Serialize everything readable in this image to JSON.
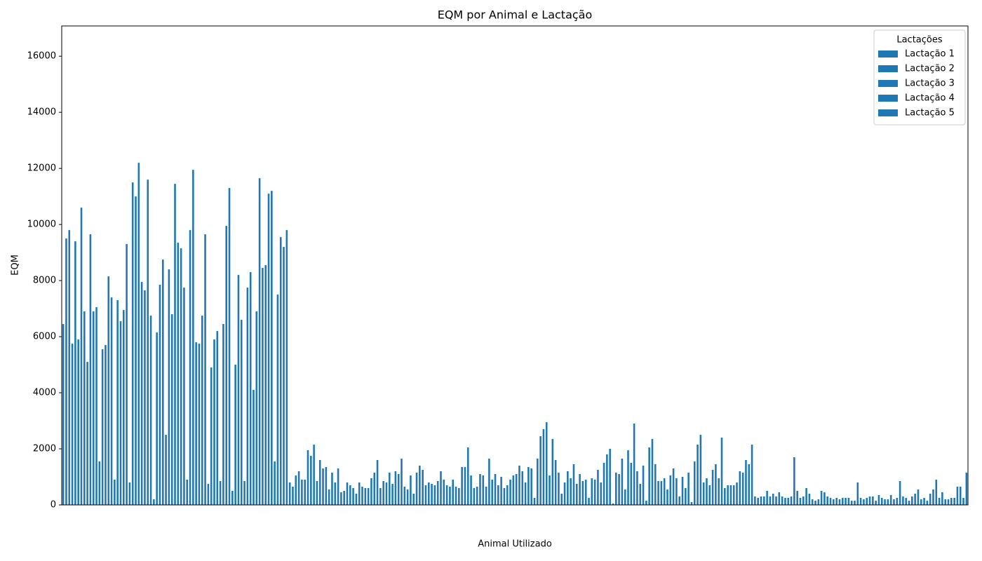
{
  "chart_data": {
    "type": "bar",
    "title": "EQM por Animal e Lactação",
    "xlabel": "Animal Utilizado",
    "ylabel": "EQM",
    "legend_title": "Lactações",
    "legend": "upper right",
    "categories": [
      null,
      null,
      null,
      null,
      null,
      null,
      null,
      null,
      null,
      null,
      null,
      null,
      null,
      null,
      null,
      null,
      null,
      null,
      null,
      null,
      null,
      null,
      null,
      null,
      null,
      null,
      null,
      null,
      null,
      null,
      null,
      null,
      null,
      null,
      null,
      null,
      null,
      null,
      null,
      null,
      null,
      null,
      null,
      null,
      null,
      null,
      null,
      null,
      null,
      null,
      null,
      null,
      null,
      null,
      null,
      null,
      null,
      null,
      null,
      null
    ],
    "ylim": [
      0,
      17080
    ],
    "yticks": [
      0,
      2000,
      4000,
      6000,
      8000,
      10000,
      12000,
      14000,
      16000
    ],
    "series": [
      {
        "name": "Lactação 1",
        "color": "#1f77b4",
        "values": [
          6450,
          5900,
          6900,
          8150,
          6950,
          12200,
          200,
          8400,
          7750,
          5750,
          5900,
          11300,
          850,
          11650,
          1550,
          800,
          900,
          1600,
          800,
          700,
          600,
          600,
          1200,
          1050,
          700,
          1200,
          650,
          1050,
          650,
          1000,
          1100,
          1300,
          2950,
          400,
          750,
          950,
          1800,
          1650,
          1200,
          2350,
          550,
          1000,
          2150,
          1250,
          700,
          1150,
          250,
          400,
          250,
          300,
          200,
          200,
          250,
          200,
          350,
          200,
          150,
          250,
          250,
          250
        ]
      },
      {
        "name": "Lactação 2",
        "color": "#1f77b4",
        "values": [
          9500,
          10600,
          7050,
          7400,
          9300,
          7950,
          6150,
          6800,
          900,
          6750,
          6200,
          500,
          7750,
          8450,
          7500,
          650,
          1950,
          1300,
          1300,
          600,
          600,
          850,
          1100,
          400,
          800,
          900,
          600,
          600,
          1650,
          600,
          1400,
          250,
          1050,
          800,
          1100,
          900,
          2000,
          550,
          750,
          1450,
          1050,
          600,
          2500,
          1450,
          700,
          1600,
          300,
          300,
          300,
          600,
          500,
          250,
          150,
          250,
          250,
          250,
          300,
          150,
          450,
          650
        ]
      },
      {
        "name": "Lactação 3",
        "color": "#1f77b4",
        "values": [
          9800,
          6900,
          1550,
          900,
          800,
          7650,
          7850,
          11450,
          9800,
          9650,
          850,
          5000,
          8300,
          8550,
          9550,
          1050,
          1750,
          1350,
          450,
          400,
          950,
          800,
          1650,
          1150,
          750,
          700,
          1350,
          650,
          900,
          700,
          1200,
          1650,
          2350,
          1200,
          850,
          1250,
          50,
          1950,
          1400,
          850,
          1300,
          1150,
          800,
          950,
          700,
          1450,
          300,
          450,
          1700,
          400,
          450,
          200,
          150,
          300,
          200,
          850,
          400,
          400,
          200,
          650
        ]
      },
      {
        "name": "Lactação 4",
        "color": "#1f77b4",
        "values": [
          5750,
          5100,
          5550,
          7300,
          11500,
          11600,
          8750,
          9350,
          11950,
          750,
          6450,
          8200,
          4100,
          11100,
          9200,
          1200,
          2150,
          550,
          500,
          800,
          1150,
          1150,
          650,
          1400,
          700,
          650,
          1350,
          1100,
          1100,
          900,
          800,
          2450,
          1600,
          950,
          900,
          800,
          1150,
          1500,
          150,
          850,
          950,
          100,
          950,
          2400,
          800,
          2150,
          500,
          300,
          500,
          200,
          300,
          250,
          800,
          300,
          200,
          300,
          550,
          550,
          200,
          250
        ]
      },
      {
        "name": "Lactação 5",
        "color": "#1f77b4",
        "values": [
          9400,
          9650,
          5700,
          6550,
          11000,
          6750,
          2500,
          9150,
          5800,
          4900,
          9950,
          6600,
          6900,
          11200,
          9800,
          900,
          850,
          1150,
          800,
          650,
          1600,
          750,
          550,
          1250,
          850,
          900,
          2050,
          1050,
          700,
          1050,
          1350,
          2700,
          1150,
          1450,
          250,
          1500,
          1100,
          2900,
          2050,
          950,
          300,
          1550,
          700,
          600,
          1200,
          300,
          300,
          250,
          250,
          150,
          250,
          250,
          250,
          150,
          350,
          250,
          200,
          900,
          250,
          1150
        ]
      }
    ]
  }
}
